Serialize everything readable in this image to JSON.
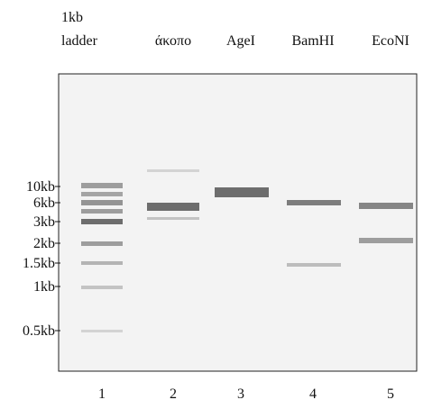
{
  "lanes": [
    {
      "header": [
        "1kb",
        "ladder"
      ],
      "number": "1"
    },
    {
      "header": [
        "άκοπο"
      ],
      "number": "2"
    },
    {
      "header": [
        "AgeI"
      ],
      "number": "3"
    },
    {
      "header": [
        "BamHI"
      ],
      "number": "4"
    },
    {
      "header": [
        "EcoNI"
      ],
      "number": "5"
    }
  ],
  "markers": [
    "10kb",
    "6kb",
    "3kb",
    "2kb",
    "1.5kb",
    "1kb",
    "0.5kb"
  ]
}
